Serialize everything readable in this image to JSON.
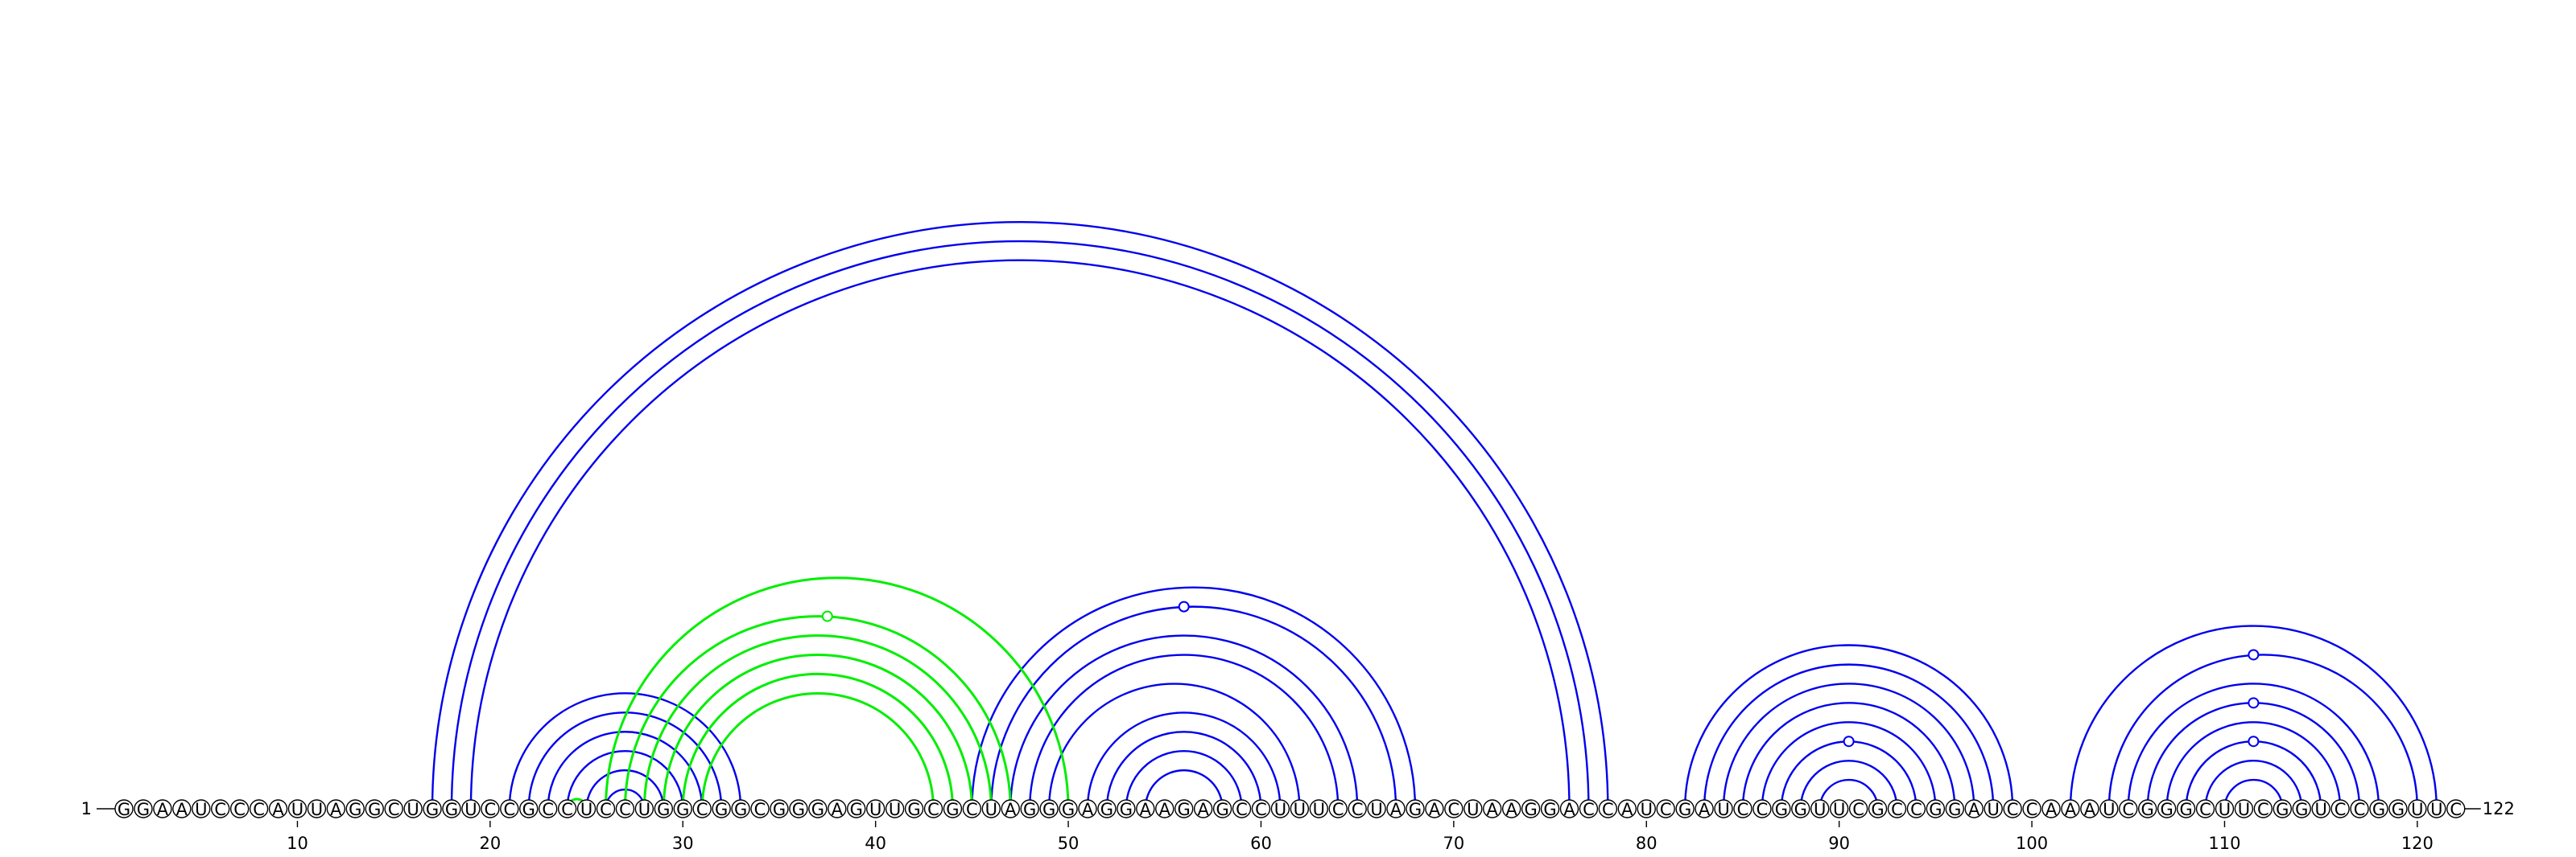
{
  "diagram": {
    "sequence": "GGAAUCCCAUUAGGCUGGUCCGCCUCCUGGCGGCGGGAGUUGCGCUAGGGAGGAAGAGCCUUUCCUAGACUAAGGACCAUCGAUCCGGUUCGCCGGAUCCAAAUCGGGCUUCGGUCCGGUUC",
    "start_label": "1",
    "end_label": "122",
    "ticks": [
      10,
      20,
      30,
      40,
      50,
      60,
      70,
      80,
      90,
      100,
      110,
      120
    ],
    "colors": {
      "primary_arcs": "#0000ee",
      "pseudoknot_arcs": "#00ee00",
      "text": "#000000",
      "background": "#ffffff"
    },
    "arcs": [
      {
        "i": 17,
        "j": 78,
        "color": "primary"
      },
      {
        "i": 18,
        "j": 77,
        "color": "primary"
      },
      {
        "i": 19,
        "j": 76,
        "color": "primary"
      },
      {
        "i": 21,
        "j": 33,
        "color": "primary"
      },
      {
        "i": 22,
        "j": 32,
        "color": "primary"
      },
      {
        "i": 23,
        "j": 31,
        "color": "primary"
      },
      {
        "i": 24,
        "j": 30,
        "color": "primary"
      },
      {
        "i": 25,
        "j": 29,
        "color": "primary"
      },
      {
        "i": 26,
        "j": 28,
        "color": "primary"
      },
      {
        "i": 45,
        "j": 68,
        "color": "primary"
      },
      {
        "i": 46,
        "j": 67,
        "color": "primary"
      },
      {
        "i": 47,
        "j": 65,
        "color": "primary"
      },
      {
        "i": 48,
        "j": 64,
        "color": "primary"
      },
      {
        "i": 49,
        "j": 62,
        "color": "primary"
      },
      {
        "i": 51,
        "j": 61,
        "color": "primary"
      },
      {
        "i": 52,
        "j": 60,
        "color": "primary"
      },
      {
        "i": 53,
        "j": 59,
        "color": "primary"
      },
      {
        "i": 54,
        "j": 58,
        "color": "primary"
      },
      {
        "i": 82,
        "j": 99,
        "color": "primary"
      },
      {
        "i": 83,
        "j": 98,
        "color": "primary"
      },
      {
        "i": 84,
        "j": 97,
        "color": "primary"
      },
      {
        "i": 85,
        "j": 96,
        "color": "primary"
      },
      {
        "i": 86,
        "j": 95,
        "color": "primary"
      },
      {
        "i": 87,
        "j": 94,
        "color": "primary"
      },
      {
        "i": 88,
        "j": 93,
        "color": "primary"
      },
      {
        "i": 89,
        "j": 92,
        "color": "primary"
      },
      {
        "i": 102,
        "j": 121,
        "color": "primary"
      },
      {
        "i": 104,
        "j": 120,
        "color": "primary"
      },
      {
        "i": 105,
        "j": 118,
        "color": "primary"
      },
      {
        "i": 106,
        "j": 117,
        "color": "primary"
      },
      {
        "i": 107,
        "j": 116,
        "color": "primary"
      },
      {
        "i": 108,
        "j": 115,
        "color": "primary"
      },
      {
        "i": 109,
        "j": 114,
        "color": "primary"
      },
      {
        "i": 110,
        "j": 113,
        "color": "primary"
      },
      {
        "i": 26,
        "j": 50,
        "color": "pseudoknot"
      },
      {
        "i": 27,
        "j": 47,
        "color": "pseudoknot"
      },
      {
        "i": 28,
        "j": 46,
        "color": "pseudoknot"
      },
      {
        "i": 29,
        "j": 45,
        "color": "pseudoknot"
      },
      {
        "i": 30,
        "j": 44,
        "color": "pseudoknot"
      },
      {
        "i": 31,
        "j": 43,
        "color": "pseudoknot"
      },
      {
        "i": 24,
        "j": 25,
        "color": "pseudoknot"
      }
    ],
    "bulge_markers": [
      {
        "pos": 37.5,
        "level": 0.8,
        "color": "pseudoknot"
      },
      {
        "pos": 56,
        "level": 0.6,
        "color": "primary"
      },
      {
        "pos": 90.5,
        "level": 0.3,
        "color": "primary"
      },
      {
        "pos": 111.5,
        "level": 0.5,
        "color": "primary"
      },
      {
        "pos": 111.5,
        "level": 0.8,
        "color": "primary"
      },
      {
        "pos": 111.5,
        "level": 0.3,
        "color": "primary"
      }
    ]
  }
}
